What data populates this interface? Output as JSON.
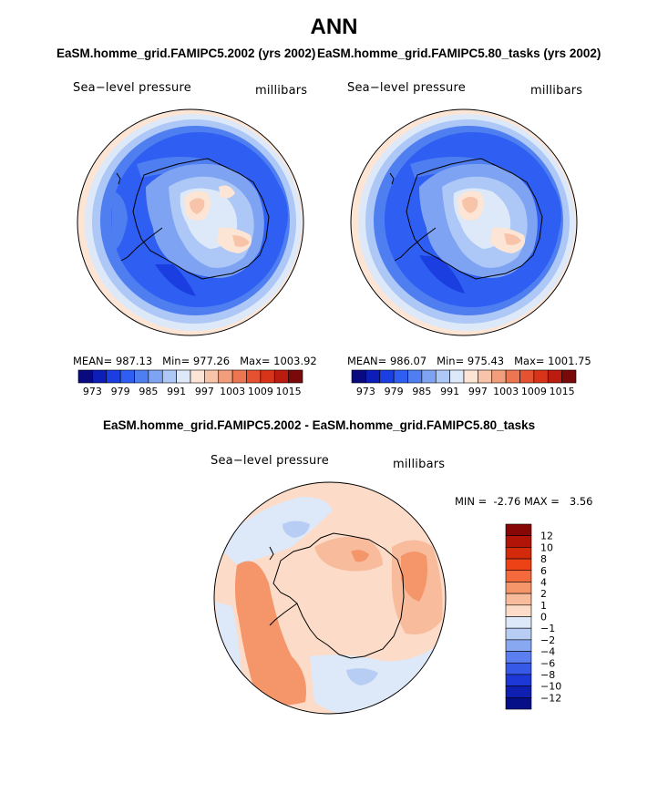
{
  "page_title": "ANN",
  "panels": [
    {
      "title": "EaSM.homme_grid.FAMIPC5.2002 (yrs 2002)",
      "label_left": "Sea−level pressure",
      "label_right": "millibars",
      "mean_label": "MEAN=",
      "mean_value": "987.13",
      "min_label": "Min=",
      "min_value": "977.26",
      "max_label": "Max=",
      "max_value": "1003.92"
    },
    {
      "title": "EaSM.homme_grid.FAMIPC5.80_tasks (yrs 2002)",
      "label_left": "Sea−level pressure",
      "label_right": "millibars",
      "mean_label": "MEAN=",
      "mean_value": "986.07",
      "min_label": "Min=",
      "min_value": "975.43",
      "max_label": "Max=",
      "max_value": "1001.75"
    }
  ],
  "diff_panel": {
    "title": "EaSM.homme_grid.FAMIPC5.2002 - EaSM.homme_grid.FAMIPC5.80_tasks",
    "label_left": "Sea−level pressure",
    "label_right": "millibars",
    "min_label": "MIN =",
    "min_value": "-2.76",
    "max_label": "MAX =",
    "max_value": "3.56"
  },
  "chart_data": [
    {
      "type": "heatmap",
      "projection": "south polar stereographic",
      "title": "EaSM.homme_grid.FAMIPC5.2002 (yrs 2002)",
      "variable": "Sea-level pressure",
      "units": "millibars",
      "mean": 987.13,
      "min": 977.26,
      "max": 1003.92,
      "colorbar_ticks": [
        "973",
        "979",
        "985",
        "991",
        "997",
        "1003",
        "1009",
        "1015"
      ],
      "colorbar_colors": [
        "#0a0a80",
        "#0d1db8",
        "#1a3ee0",
        "#2e5ef2",
        "#4f7ef0",
        "#7ea3f2",
        "#adc8f6",
        "#dde9f8",
        "#fde5d6",
        "#f7c3a9",
        "#f29e7d",
        "#ec7652",
        "#e45231",
        "#d83419",
        "#bc1b10",
        "#7a0a0a"
      ]
    },
    {
      "type": "heatmap",
      "projection": "south polar stereographic",
      "title": "EaSM.homme_grid.FAMIPC5.80_tasks (yrs 2002)",
      "variable": "Sea-level pressure",
      "units": "millibars",
      "mean": 986.07,
      "min": 975.43,
      "max": 1001.75,
      "colorbar_ticks": [
        "973",
        "979",
        "985",
        "991",
        "997",
        "1003",
        "1009",
        "1015"
      ],
      "colorbar_colors": [
        "#0a0a80",
        "#0d1db8",
        "#1a3ee0",
        "#2e5ef2",
        "#4f7ef0",
        "#7ea3f2",
        "#adc8f6",
        "#dde9f8",
        "#fde5d6",
        "#f7c3a9",
        "#f29e7d",
        "#ec7652",
        "#e45231",
        "#d83419",
        "#bc1b10",
        "#7a0a0a"
      ]
    },
    {
      "type": "heatmap",
      "projection": "south polar stereographic",
      "title": "EaSM.homme_grid.FAMIPC5.2002 - EaSM.homme_grid.FAMIPC5.80_tasks",
      "variable": "Sea-level pressure",
      "units": "millibars",
      "min": -2.76,
      "max": 3.56,
      "colorbar_ticks": [
        "12",
        "10",
        "8",
        "6",
        "4",
        "2",
        "1",
        "0",
        "−1",
        "−2",
        "−4",
        "−6",
        "−8",
        "−10",
        "−12"
      ],
      "colorbar_colors": [
        "#870606",
        "#b31408",
        "#d42a0c",
        "#ec4216",
        "#f46a3c",
        "#f5966a",
        "#f8bc9c",
        "#fcdcc8",
        "#dde8f8",
        "#b7cdf4",
        "#88a8f2",
        "#5b7ff0",
        "#3659e8",
        "#1d38d6",
        "#0e1fb2",
        "#060f88"
      ]
    }
  ]
}
